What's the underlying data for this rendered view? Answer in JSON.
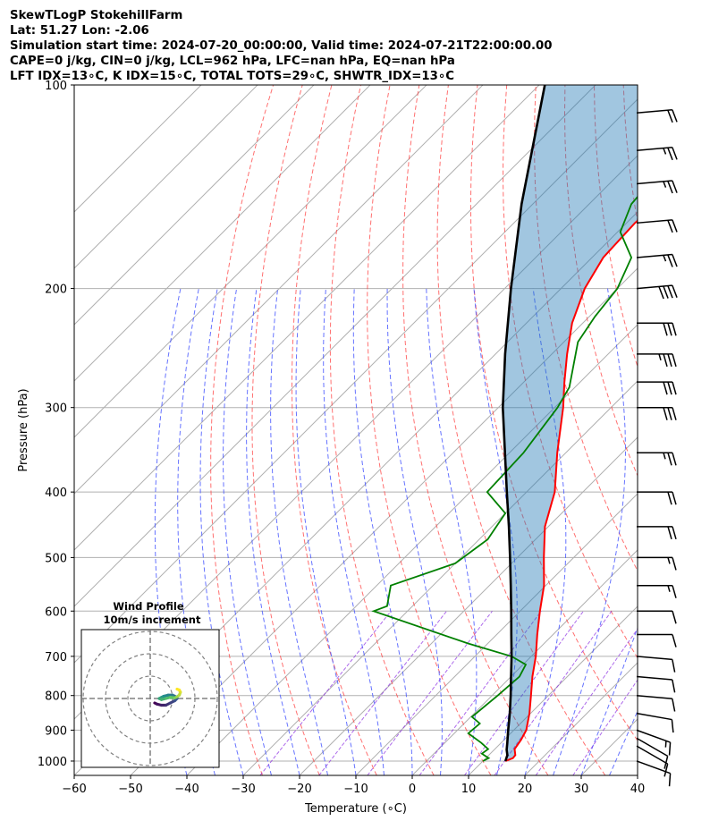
{
  "header": {
    "line1": "SkewTLogP StokehillFarm",
    "line2": "Lat: 51.27   Lon: -2.06",
    "line3": "Simulation start time: 2024-07-20_00:00:00, Valid time: 2024-07-21T22:00:00.00",
    "line4": "CAPE=0 j/kg, CIN=0 j/kg, LCL=962 hPa, LFC=nan hPa, EQ=nan hPa",
    "line5": "LFT IDX=13∘C, K IDX=15∘C, TOTAL TOTS=29∘C, SHWTR_IDX=13∘C"
  },
  "chart_data": {
    "type": "line",
    "xlabel": "Temperature (∘C)",
    "ylabel": "Pressure (hPa)",
    "xlim": [
      -60,
      40
    ],
    "ylim": [
      1050,
      100
    ],
    "skew": 35,
    "x_ticks": [
      "−60",
      "−50",
      "−40",
      "−30",
      "−20",
      "−10",
      "0",
      "10",
      "20",
      "30",
      "40"
    ],
    "x_tick_values": [
      -60,
      -50,
      -40,
      -30,
      -20,
      -10,
      0,
      10,
      20,
      30,
      40
    ],
    "y_ticks": [
      "1000",
      "900",
      "800",
      "700",
      "600",
      "500",
      "400",
      "300",
      "200",
      "100"
    ],
    "y_tick_values": [
      1000,
      900,
      800,
      700,
      600,
      500,
      400,
      300,
      200,
      100
    ],
    "series": [
      {
        "name": "Temperature",
        "color": "#ff0000",
        "p": [
          1000,
          990,
          980,
          960,
          930,
          900,
          850,
          800,
          750,
          700,
          650,
          600,
          550,
          500,
          450,
          400,
          350,
          300,
          275,
          250,
          225,
          200,
          180,
          160,
          140,
          125,
          110,
          100
        ],
        "t": [
          14.0,
          14.8,
          14.7,
          13.5,
          13.0,
          12.2,
          9.8,
          6.9,
          3.8,
          0.8,
          -2.8,
          -6.5,
          -10.3,
          -15.3,
          -20.6,
          -25.0,
          -31.5,
          -38.5,
          -42.8,
          -47.3,
          -51.9,
          -55.8,
          -58.0,
          -58.5,
          -57.5,
          -55.0,
          -51.5,
          -48.5
        ]
      },
      {
        "name": "Dewpoint",
        "color": "#008000",
        "p": [
          1000,
          990,
          975,
          960,
          940,
          910,
          880,
          860,
          800,
          750,
          720,
          700,
          670,
          600,
          590,
          550,
          510,
          470,
          430,
          400,
          350,
          300,
          280,
          240,
          220,
          200,
          180,
          165,
          150,
          130,
          110,
          100
        ],
        "t": [
          10.0,
          10.5,
          8.5,
          8.8,
          6.5,
          2.5,
          2.8,
          0.2,
          1.0,
          1.5,
          0.5,
          -3.5,
          -13.5,
          -36.0,
          -34.5,
          -37.5,
          -30.0,
          -28.5,
          -30.0,
          -37.0,
          -37.5,
          -39.5,
          -41.0,
          -47.5,
          -49.0,
          -50.0,
          -53.0,
          -59.5,
          -62.5,
          -63.5,
          -65.5,
          -65.0
        ]
      },
      {
        "name": "Parcel",
        "color": "#000000",
        "p": [
          1000,
          980,
          962,
          940,
          900,
          850,
          800,
          750,
          700,
          650,
          600,
          550,
          500,
          450,
          400,
          350,
          300,
          250,
          200,
          150,
          100
        ],
        "t": [
          14.0,
          13.3,
          12.2,
          11.1,
          9.0,
          6.3,
          3.3,
          0.0,
          -3.5,
          -7.4,
          -11.6,
          -16.2,
          -21.3,
          -27.0,
          -33.5,
          -40.8,
          -49.2,
          -58.3,
          -68.9,
          -82.0,
          -99.0
        ]
      }
    ],
    "wind_barbs": {
      "p": [
        1000,
        950,
        925,
        900,
        850,
        800,
        750,
        700,
        650,
        600,
        550,
        500,
        450,
        400,
        350,
        300,
        275,
        250,
        225,
        200,
        180,
        160,
        140,
        125,
        110
      ],
      "speed_kt": [
        10,
        10,
        10,
        15,
        10,
        10,
        10,
        10,
        10,
        10,
        15,
        15,
        20,
        20,
        25,
        30,
        30,
        35,
        30,
        40,
        25,
        20,
        25,
        25,
        20
      ],
      "direction_deg": [
        290,
        300,
        300,
        290,
        280,
        275,
        275,
        275,
        270,
        270,
        270,
        270,
        270,
        270,
        270,
        270,
        270,
        270,
        270,
        265,
        265,
        265,
        265,
        265,
        265
      ]
    },
    "inset": {
      "title": "Wind Profile",
      "subtitle": "10m/s increment",
      "hodograph_u": [
        2,
        3,
        5,
        7,
        9,
        11,
        12,
        11,
        10,
        8,
        6,
        5,
        4,
        5,
        7,
        9,
        11,
        12,
        13,
        13.5,
        13,
        12
      ],
      "hodograph_v": [
        -2,
        -2.5,
        -3,
        -3,
        -2,
        -1,
        0,
        1,
        1.5,
        1.5,
        1,
        0.5,
        0,
        -0.5,
        0,
        0.5,
        0.3,
        0.8,
        1.5,
        2.8,
        3.8,
        4.2
      ]
    }
  }
}
